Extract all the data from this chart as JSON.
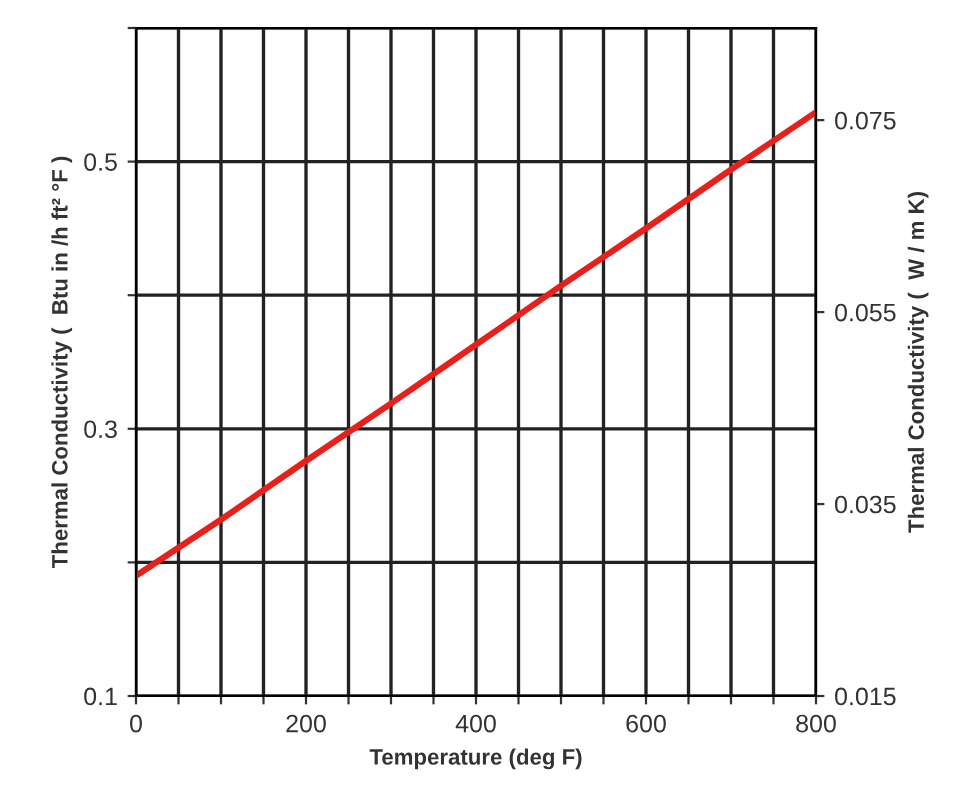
{
  "chart_data": {
    "type": "line",
    "xlabel": "Temperature (deg F)",
    "ylabel": "Thermal Conductivity (  Btu in /h ft² °F )",
    "y2label": "Thermal Conductivity (  W / m K)",
    "x": [
      0,
      100,
      200,
      300,
      400,
      500,
      600,
      700,
      800
    ],
    "series": [
      {
        "color": "#e8201c",
        "values": [
          0.19,
          0.232,
          0.276,
          0.319,
          0.363,
          0.407,
          0.45,
          0.494,
          0.537
        ]
      }
    ],
    "xlim": [
      0,
      800
    ],
    "xticks": [
      0,
      {
        "value": 50,
        "label": null
      },
      {
        "value": 100,
        "label": null
      },
      {
        "value": 150,
        "label": null
      },
      200,
      {
        "value": 250,
        "label": null
      },
      {
        "value": 300,
        "label": null
      },
      {
        "value": 350,
        "label": null
      },
      400,
      {
        "value": 450,
        "label": null
      },
      {
        "value": 500,
        "label": null
      },
      {
        "value": 550,
        "label": null
      },
      600,
      {
        "value": 650,
        "label": null
      },
      {
        "value": 700,
        "label": null
      },
      {
        "value": 750,
        "label": null
      },
      800
    ],
    "ylim": [
      0.1,
      0.6
    ],
    "yticks": [
      0.1,
      {
        "value": 0.2,
        "label": null
      },
      0.3,
      {
        "value": 0.4,
        "label": null
      },
      0.5,
      {
        "value": 0.6,
        "label": null
      }
    ],
    "y2lim": [
      0.015,
      0.0846
    ],
    "y2ticks": [
      0.015,
      0.035,
      0.055,
      0.075
    ],
    "grid": true,
    "marker": "none",
    "line_style": "solid"
  }
}
